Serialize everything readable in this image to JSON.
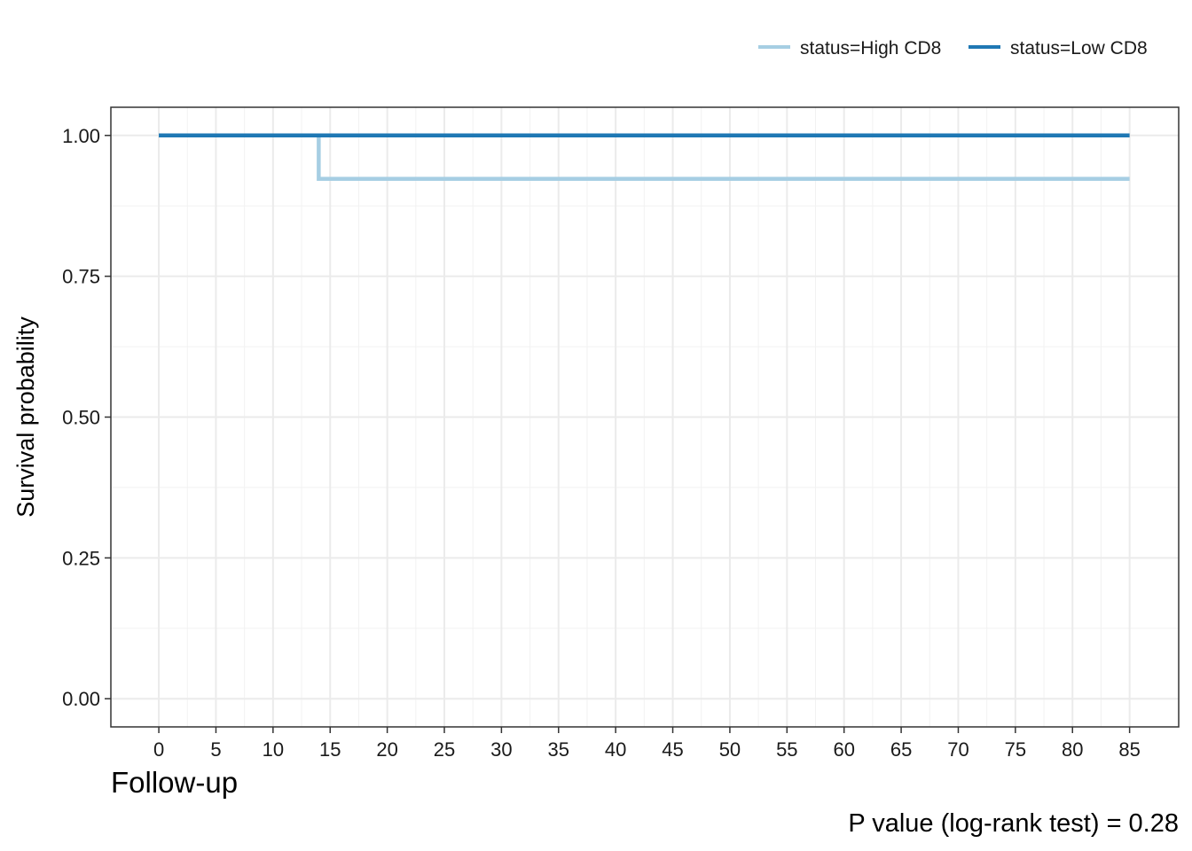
{
  "chart_data": {
    "type": "line",
    "subtype": "kaplan-meier-step",
    "title": "",
    "xlabel": "Follow-up",
    "ylabel": "Survival probability",
    "caption": "P value (log-rank test) = 0.28",
    "xlim": [
      -4.2,
      89.3
    ],
    "ylim": [
      -0.05,
      1.05
    ],
    "x_ticks": [
      0,
      5,
      10,
      15,
      20,
      25,
      30,
      35,
      40,
      45,
      50,
      55,
      60,
      65,
      70,
      75,
      80,
      85
    ],
    "y_ticks": [
      0.0,
      0.25,
      0.5,
      0.75,
      1.0
    ],
    "y_tick_labels": [
      "0.00",
      "0.25",
      "0.50",
      "0.75",
      "1.00"
    ],
    "grid": true,
    "legend_position": "top-right",
    "series": [
      {
        "name": "status=High CD8",
        "color": "#a6cee3",
        "x": [
          0,
          14,
          85
        ],
        "y": [
          1.0,
          0.923,
          0.923
        ]
      },
      {
        "name": "status=Low CD8",
        "color": "#1f78b4",
        "x": [
          0,
          85
        ],
        "y": [
          1.0,
          1.0
        ]
      }
    ]
  }
}
